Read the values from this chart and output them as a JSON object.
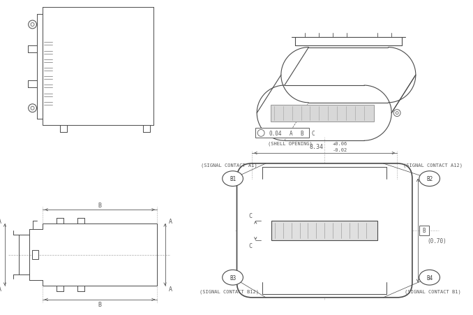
{
  "bg_color": "#ffffff",
  "lc": "#4a4a4a",
  "dc": "#5a5a5a",
  "tc": "#3a3a3a",
  "dim_label_8_34": "8.34",
  "dim_tol_plus": "+0.06",
  "dim_tol_minus": "-0.02",
  "dim_gdt": "0.04",
  "dim_070": "(0.70)",
  "label_a1": "(SIGNAL CONTACT A1)",
  "label_a12": "(SIGNAL CONTACT A12)",
  "label_b12": "(SIGNAL CONTACT B12)",
  "label_b1": "(SIGNAL CONTACT B1)",
  "label_shell": "(SHELL OPENING)",
  "label_A": "A",
  "label_B": "B",
  "label_C": "C",
  "label_B1": "B1",
  "label_B2": "B2",
  "label_B3": "B3",
  "label_B4": "B4"
}
